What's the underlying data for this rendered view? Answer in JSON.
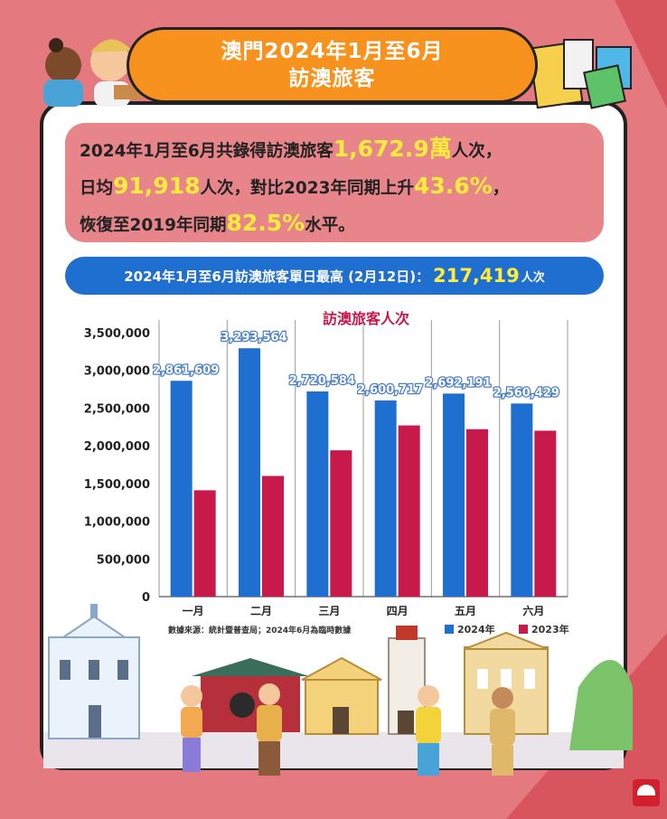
{
  "header": {
    "title_line1": "澳門2024年1月至6月",
    "title_line2": "訪澳旅客"
  },
  "summary": {
    "line1_prefix": "2024年1月至6月共錄得訪澳旅客",
    "line1_value": "1,672.9萬",
    "line1_suffix": "人次，",
    "line2_prefix": "日均",
    "line2_value": "91,918",
    "line2_mid": "人次，對比2023年同期上升",
    "line2_value2": "43.6%",
    "line2_suffix": "，",
    "line3_prefix": "恢復至2019年同期",
    "line3_value": "82.5%",
    "line3_suffix": "水平。"
  },
  "peak": {
    "label": "2024年1月至6月訪澳旅客單日最高 (2月12日)：",
    "value": "217,419",
    "unit": "人次"
  },
  "chart_data": {
    "type": "bar",
    "title": "訪澳旅客人次",
    "categories": [
      "一月",
      "二月",
      "三月",
      "四月",
      "五月",
      "六月"
    ],
    "series": [
      {
        "name": "2024年",
        "color": "#1f6fd1",
        "values": [
          2861609,
          3293564,
          2720584,
          2600717,
          2692191,
          2560429
        ],
        "labels": [
          "2,861,609",
          "3,293,564",
          "2,720,584",
          "2,600,717",
          "2,692,191",
          "2,560,429"
        ]
      },
      {
        "name": "2023年",
        "color": "#c8194b",
        "values": [
          1410000,
          1600000,
          1940000,
          2270000,
          2220000,
          2200000
        ]
      }
    ],
    "yticks": [
      "0",
      "500,000",
      "1,000,000",
      "1,500,000",
      "2,000,000",
      "2,500,000",
      "3,000,000",
      "3,500,000"
    ],
    "ylim": [
      0,
      3500000
    ],
    "grid": "vertical",
    "legend": "bottom-right"
  },
  "source_note": "數據來源：統計暨普查局；2024年6月為臨時數據",
  "colors": {
    "background": "#e47a7f",
    "accent_orange": "#f7921e",
    "blue": "#1f6fd1",
    "red": "#c8194b"
  }
}
